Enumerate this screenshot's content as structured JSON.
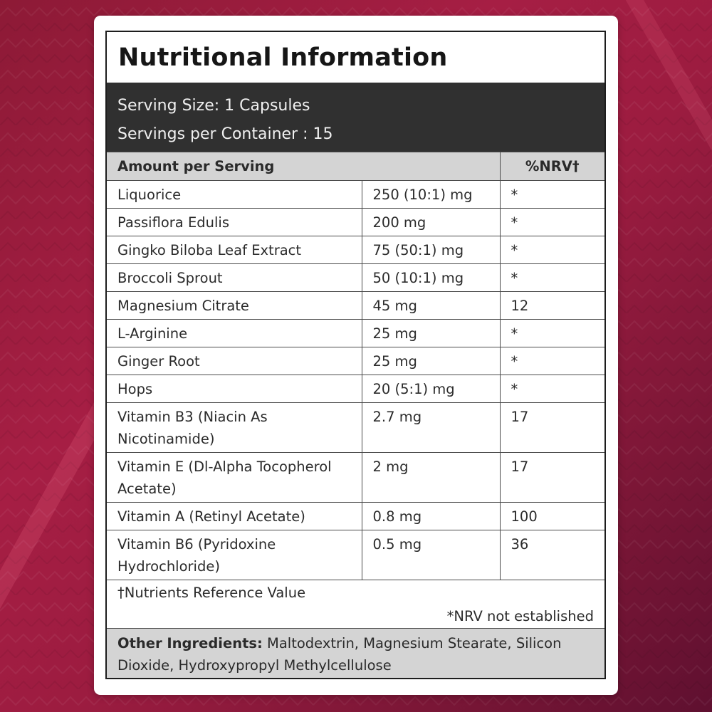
{
  "title": "Nutritional Information",
  "serving": {
    "size": "Serving Size: 1 Capsules",
    "per_container": "Servings per Container : 15"
  },
  "table": {
    "header_amount": "Amount per Serving",
    "header_nrv": "%NRV†",
    "rows": [
      {
        "name": "Liquorice",
        "amount": "250 (10:1) mg",
        "nrv": "*"
      },
      {
        "name": "Passiflora Edulis",
        "amount": "200 mg",
        "nrv": "*"
      },
      {
        "name": "Gingko Biloba Leaf Extract",
        "amount": "75 (50:1) mg",
        "nrv": "*"
      },
      {
        "name": "Broccoli Sprout",
        "amount": "50 (10:1) mg",
        "nrv": "*"
      },
      {
        "name": "Magnesium Citrate",
        "amount": "45 mg",
        "nrv": "12"
      },
      {
        "name": "L-Arginine",
        "amount": "25 mg",
        "nrv": "*"
      },
      {
        "name": "Ginger Root",
        "amount": "25 mg",
        "nrv": "*"
      },
      {
        "name": "Hops",
        "amount": "20 (5:1) mg",
        "nrv": "*"
      },
      {
        "name": "Vitamin B3 (Niacin As Nicotinamide)",
        "amount": "2.7 mg",
        "nrv": "17"
      },
      {
        "name": "Vitamin E (Dl-Alpha Tocopherol Acetate)",
        "amount": "2 mg",
        "nrv": "17"
      },
      {
        "name": "Vitamin A (Retinyl Acetate)",
        "amount": "0.8 mg",
        "nrv": "100"
      },
      {
        "name": "Vitamin B6 (Pyridoxine Hydrochloride)",
        "amount": "0.5 mg",
        "nrv": "36"
      }
    ]
  },
  "footnotes": {
    "nrv_definition": "†Nutrients Reference Value",
    "not_established": "*NRV not established"
  },
  "other_ingredients": {
    "label": "Other Ingredients:",
    "text": "Maltodextrin, Magnesium Stearate, Silicon Dioxide, Hydroxypropyl Methylcellulose"
  },
  "colors": {
    "background": "#9c1c40",
    "serving_band": "#303030",
    "header_band": "#d4d4d4"
  }
}
